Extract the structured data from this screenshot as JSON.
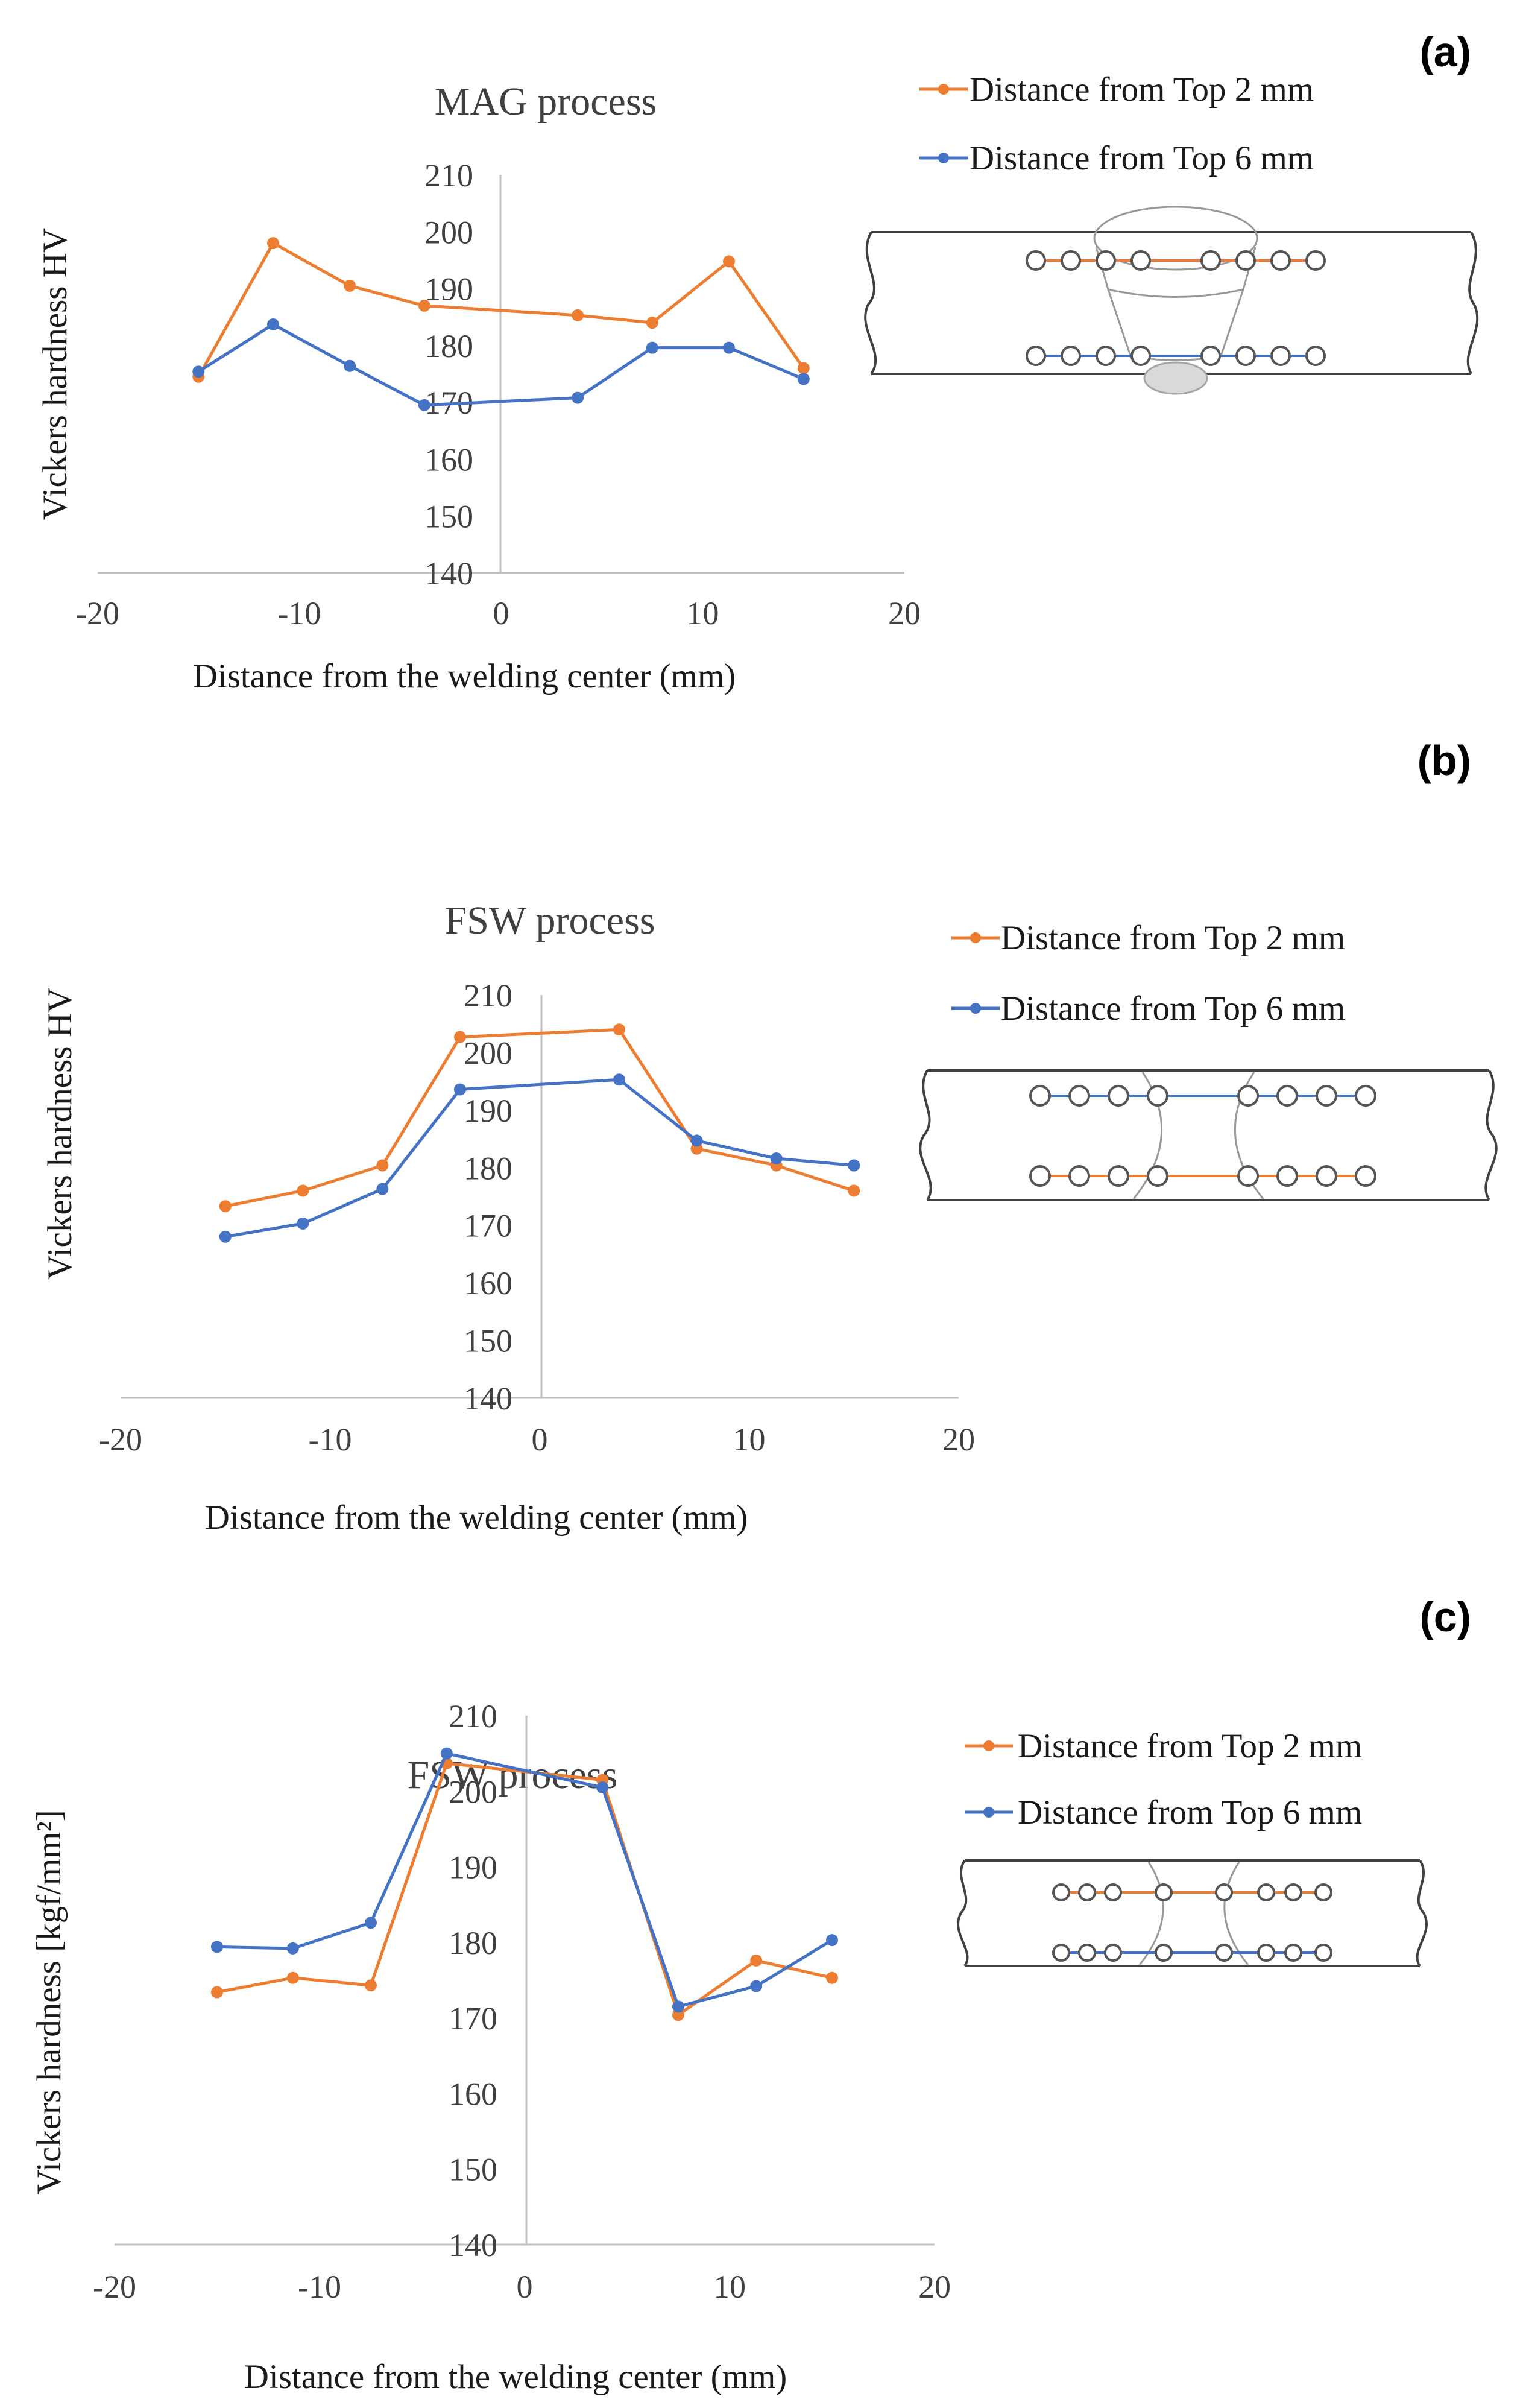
{
  "colors": {
    "top2mm": "#ED7D31",
    "top6mm": "#4472C4",
    "axis": "#bfbfbf",
    "text": "#404040"
  },
  "panels": [
    {
      "label": "(a)",
      "diagram": "MAG"
    },
    {
      "label": "(b)",
      "diagram": "FSW-b"
    },
    {
      "label": "(c)",
      "diagram": "FSW-c"
    }
  ],
  "chart_data": [
    {
      "type": "line",
      "title": "MAG process",
      "xlabel": "Distance from the welding center (mm)",
      "ylabel": "Vickers  hardness HV",
      "xlim": [
        -20,
        20
      ],
      "ylim": [
        140,
        210
      ],
      "xticks": [
        -20,
        -10,
        0,
        10,
        20
      ],
      "yticks": [
        210,
        200,
        190,
        180,
        170,
        160,
        150,
        140
      ],
      "legend_position": "top-right",
      "series": [
        {
          "name": "Distance from Top  2 mm",
          "color": "#ED7D31",
          "x": [
            -15,
            -11.3,
            -7.5,
            -3.8,
            3.8,
            7.5,
            11.3,
            15
          ],
          "y": [
            174.5,
            198,
            190.5,
            187,
            185.3,
            184,
            194.8,
            176
          ]
        },
        {
          "name": "Distance from Top  6 mm",
          "color": "#4472C4",
          "x": [
            -15,
            -11.3,
            -7.5,
            -3.8,
            3.8,
            7.5,
            11.3,
            15
          ],
          "y": [
            175.4,
            183.7,
            176.4,
            169.5,
            170.8,
            179.6,
            179.6,
            174.1
          ]
        }
      ]
    },
    {
      "type": "line",
      "title": "FSW process",
      "xlabel": "Distance from the welding center (mm)",
      "ylabel": "Vickers  hardness HV",
      "xlim": [
        -20,
        20
      ],
      "ylim": [
        140,
        210
      ],
      "xticks": [
        -20,
        -10,
        0,
        10,
        20
      ],
      "yticks": [
        210,
        200,
        190,
        180,
        170,
        160,
        150,
        140
      ],
      "legend_position": "top-right",
      "series": [
        {
          "name": "Distance from Top  2 mm",
          "color": "#ED7D31",
          "x": [
            -15,
            -11.3,
            -7.5,
            -3.8,
            3.8,
            7.5,
            11.3,
            15
          ],
          "y": [
            173.3,
            176,
            180.4,
            202.7,
            204,
            183.3,
            180.4,
            176
          ]
        },
        {
          "name": "Distance from Top  6 mm",
          "color": "#4472C4",
          "x": [
            -15,
            -11.3,
            -7.5,
            -3.8,
            3.8,
            7.5,
            11.3,
            15
          ],
          "y": [
            168,
            170.3,
            176.3,
            193.6,
            195.3,
            184.7,
            181.6,
            180.4
          ]
        }
      ]
    },
    {
      "type": "line",
      "title": "FSW process",
      "xlabel": "Distance from the welding center (mm)",
      "ylabel": "Vickers hardness [kgf/mm²]",
      "xlim": [
        -20,
        20
      ],
      "ylim": [
        140,
        210
      ],
      "xticks": [
        -20,
        -10,
        0,
        10,
        20
      ],
      "yticks": [
        210,
        200,
        190,
        180,
        170,
        160,
        150,
        140
      ],
      "legend_position": "top-right",
      "series": [
        {
          "name": "Distance from Top  2 mm",
          "color": "#ED7D31",
          "x": [
            -15,
            -11.3,
            -7.5,
            -3.8,
            3.8,
            7.5,
            11.3,
            15
          ],
          "y": [
            173.4,
            175.3,
            174.3,
            203.7,
            201.5,
            170.4,
            177.6,
            175.3
          ]
        },
        {
          "name": "Distance from Top  6 mm",
          "color": "#4472C4",
          "x": [
            -15,
            -11.3,
            -7.5,
            -3.8,
            3.8,
            7.5,
            11.3,
            15
          ],
          "y": [
            179.4,
            179.2,
            182.6,
            205,
            200.5,
            171.5,
            174.2,
            180.3
          ]
        }
      ]
    }
  ]
}
